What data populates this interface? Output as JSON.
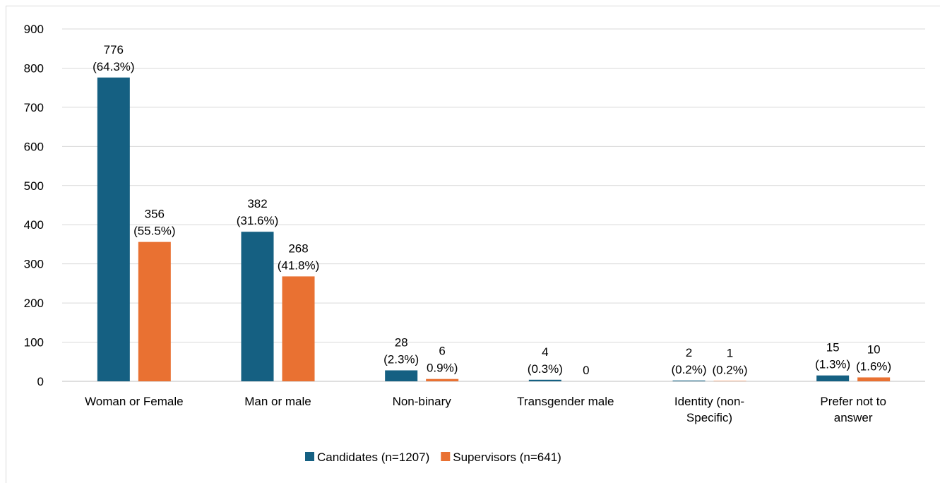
{
  "chart_data": {
    "type": "bar",
    "categories": [
      "Woman or Female",
      "Man or male",
      "Non-binary",
      "Transgender male",
      "Identity (non-Specific)",
      "Prefer not to answer"
    ],
    "series": [
      {
        "name": "Candidates (n=1207)",
        "color": "#156082",
        "values": [
          776,
          382,
          28,
          4,
          2,
          15
        ],
        "value_labels": [
          [
            "776",
            "(64.3%)"
          ],
          [
            "382",
            "(31.6%)"
          ],
          [
            "28",
            "(2.3%)"
          ],
          [
            "4",
            "(0.3%)"
          ],
          [
            "2",
            "(0.2%)"
          ],
          [
            "15",
            "(1.3%)"
          ]
        ]
      },
      {
        "name": "Supervisors (n=641)",
        "color": "#e97132",
        "values": [
          356,
          268,
          6,
          0,
          1,
          10
        ],
        "value_labels": [
          [
            "356",
            "(55.5%)"
          ],
          [
            "268",
            "(41.8%)"
          ],
          [
            "6",
            "0.9%)"
          ],
          [
            "0"
          ],
          [
            "1",
            "(0.2%)"
          ],
          [
            "10",
            "(1.6%)"
          ]
        ]
      }
    ],
    "ylim": [
      0,
      900
    ],
    "yticks": [
      0,
      100,
      200,
      300,
      400,
      500,
      600,
      700,
      800,
      900
    ],
    "grid": true,
    "legend": "bottom"
  }
}
